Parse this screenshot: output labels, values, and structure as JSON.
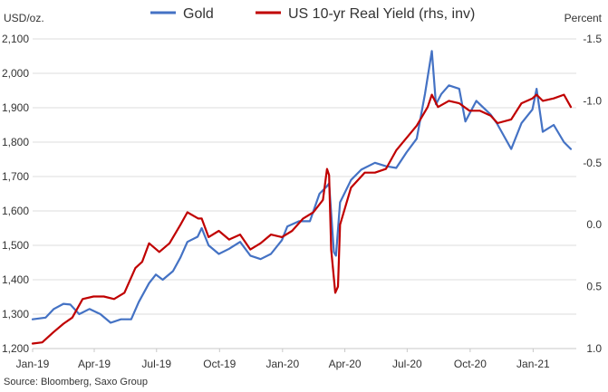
{
  "chart_data": {
    "type": "line",
    "left_unit": "USD/oz.",
    "right_unit": "Percent",
    "x_ticks": [
      "Jan-19",
      "Apr-19",
      "Jul-19",
      "Oct-19",
      "Jan-20",
      "Apr-20",
      "Jul-20",
      "Oct-20",
      "Jan-21"
    ],
    "y_left_ticks": [
      "1,200",
      "1,300",
      "1,400",
      "1,500",
      "1,600",
      "1,700",
      "1,800",
      "1,900",
      "2,000",
      "2,100"
    ],
    "y_right_ticks": [
      "-1.5",
      "-1.0",
      "-0.5",
      "0.0",
      "0.5",
      "1.0"
    ],
    "y_left_range": [
      1200,
      2100
    ],
    "y_right_range": [
      1.0,
      -1.5
    ],
    "right_axis_inverted": true,
    "x_range": [
      "2019-01-01",
      "2021-03-05"
    ],
    "grid": "horizontal",
    "legend_position": "top",
    "series": [
      {
        "name": "Gold",
        "axis": "left",
        "color": "#4472c4",
        "points": [
          [
            "2019-01-01",
            1285
          ],
          [
            "2019-01-20",
            1290
          ],
          [
            "2019-02-01",
            1315
          ],
          [
            "2019-02-15",
            1330
          ],
          [
            "2019-02-25",
            1328
          ],
          [
            "2019-03-10",
            1300
          ],
          [
            "2019-03-25",
            1315
          ],
          [
            "2019-04-10",
            1300
          ],
          [
            "2019-04-25",
            1275
          ],
          [
            "2019-05-10",
            1285
          ],
          [
            "2019-05-25",
            1285
          ],
          [
            "2019-06-05",
            1335
          ],
          [
            "2019-06-20",
            1390
          ],
          [
            "2019-06-30",
            1415
          ],
          [
            "2019-07-10",
            1400
          ],
          [
            "2019-07-25",
            1425
          ],
          [
            "2019-08-05",
            1465
          ],
          [
            "2019-08-15",
            1510
          ],
          [
            "2019-08-30",
            1525
          ],
          [
            "2019-09-05",
            1550
          ],
          [
            "2019-09-15",
            1500
          ],
          [
            "2019-09-30",
            1475
          ],
          [
            "2019-10-15",
            1490
          ],
          [
            "2019-10-31",
            1510
          ],
          [
            "2019-11-15",
            1470
          ],
          [
            "2019-11-30",
            1460
          ],
          [
            "2019-12-15",
            1475
          ],
          [
            "2019-12-31",
            1515
          ],
          [
            "2020-01-08",
            1555
          ],
          [
            "2020-01-25",
            1570
          ],
          [
            "2020-02-10",
            1570
          ],
          [
            "2020-02-24",
            1650
          ],
          [
            "2020-03-05",
            1670
          ],
          [
            "2020-03-09",
            1680
          ],
          [
            "2020-03-16",
            1480
          ],
          [
            "2020-03-19",
            1470
          ],
          [
            "2020-03-25",
            1625
          ],
          [
            "2020-04-10",
            1690
          ],
          [
            "2020-04-25",
            1720
          ],
          [
            "2020-05-15",
            1740
          ],
          [
            "2020-05-31",
            1730
          ],
          [
            "2020-06-15",
            1725
          ],
          [
            "2020-06-30",
            1770
          ],
          [
            "2020-07-15",
            1810
          ],
          [
            "2020-07-27",
            1940
          ],
          [
            "2020-08-06",
            2065
          ],
          [
            "2020-08-12",
            1910
          ],
          [
            "2020-08-20",
            1940
          ],
          [
            "2020-08-31",
            1965
          ],
          [
            "2020-09-15",
            1955
          ],
          [
            "2020-09-24",
            1860
          ],
          [
            "2020-10-10",
            1920
          ],
          [
            "2020-10-31",
            1880
          ],
          [
            "2020-11-09",
            1855
          ],
          [
            "2020-11-30",
            1780
          ],
          [
            "2020-12-15",
            1855
          ],
          [
            "2020-12-31",
            1895
          ],
          [
            "2021-01-06",
            1955
          ],
          [
            "2021-01-15",
            1830
          ],
          [
            "2021-01-31",
            1850
          ],
          [
            "2021-02-15",
            1800
          ],
          [
            "2021-02-25",
            1780
          ]
        ]
      },
      {
        "name": "US 10-yr Real Yield (rhs, inv)",
        "axis": "right",
        "color": "#c00000",
        "points": [
          [
            "2019-01-01",
            0.96
          ],
          [
            "2019-01-15",
            0.95
          ],
          [
            "2019-01-31",
            0.87
          ],
          [
            "2019-02-15",
            0.8
          ],
          [
            "2019-02-28",
            0.75
          ],
          [
            "2019-03-15",
            0.6
          ],
          [
            "2019-03-31",
            0.58
          ],
          [
            "2019-04-15",
            0.58
          ],
          [
            "2019-04-30",
            0.6
          ],
          [
            "2019-05-15",
            0.55
          ],
          [
            "2019-05-31",
            0.35
          ],
          [
            "2019-06-10",
            0.3
          ],
          [
            "2019-06-20",
            0.15
          ],
          [
            "2019-07-05",
            0.22
          ],
          [
            "2019-07-20",
            0.15
          ],
          [
            "2019-08-05",
            0.0
          ],
          [
            "2019-08-15",
            -0.1
          ],
          [
            "2019-08-31",
            -0.05
          ],
          [
            "2019-09-05",
            -0.05
          ],
          [
            "2019-09-15",
            0.1
          ],
          [
            "2019-09-30",
            0.05
          ],
          [
            "2019-10-15",
            0.12
          ],
          [
            "2019-10-31",
            0.08
          ],
          [
            "2019-11-15",
            0.2
          ],
          [
            "2019-11-30",
            0.15
          ],
          [
            "2019-12-15",
            0.08
          ],
          [
            "2019-12-31",
            0.1
          ],
          [
            "2020-01-15",
            0.05
          ],
          [
            "2020-01-31",
            -0.05
          ],
          [
            "2020-02-15",
            -0.1
          ],
          [
            "2020-02-29",
            -0.2
          ],
          [
            "2020-03-06",
            -0.45
          ],
          [
            "2020-03-09",
            -0.4
          ],
          [
            "2020-03-12",
            0.2
          ],
          [
            "2020-03-18",
            0.55
          ],
          [
            "2020-03-22",
            0.5
          ],
          [
            "2020-03-25",
            0.0
          ],
          [
            "2020-04-10",
            -0.3
          ],
          [
            "2020-04-30",
            -0.42
          ],
          [
            "2020-05-15",
            -0.42
          ],
          [
            "2020-05-31",
            -0.45
          ],
          [
            "2020-06-15",
            -0.6
          ],
          [
            "2020-06-30",
            -0.7
          ],
          [
            "2020-07-15",
            -0.8
          ],
          [
            "2020-07-31",
            -0.95
          ],
          [
            "2020-08-06",
            -1.05
          ],
          [
            "2020-08-15",
            -0.95
          ],
          [
            "2020-08-31",
            -1.0
          ],
          [
            "2020-09-15",
            -0.98
          ],
          [
            "2020-09-30",
            -0.92
          ],
          [
            "2020-10-15",
            -0.92
          ],
          [
            "2020-10-31",
            -0.88
          ],
          [
            "2020-11-10",
            -0.82
          ],
          [
            "2020-11-30",
            -0.85
          ],
          [
            "2020-12-15",
            -0.98
          ],
          [
            "2020-12-31",
            -1.02
          ],
          [
            "2021-01-06",
            -1.05
          ],
          [
            "2021-01-15",
            -1.0
          ],
          [
            "2021-01-31",
            -1.02
          ],
          [
            "2021-02-15",
            -1.05
          ],
          [
            "2021-02-25",
            -0.95
          ]
        ]
      }
    ]
  },
  "source_text": "Source: Bloomberg, Saxo Group"
}
